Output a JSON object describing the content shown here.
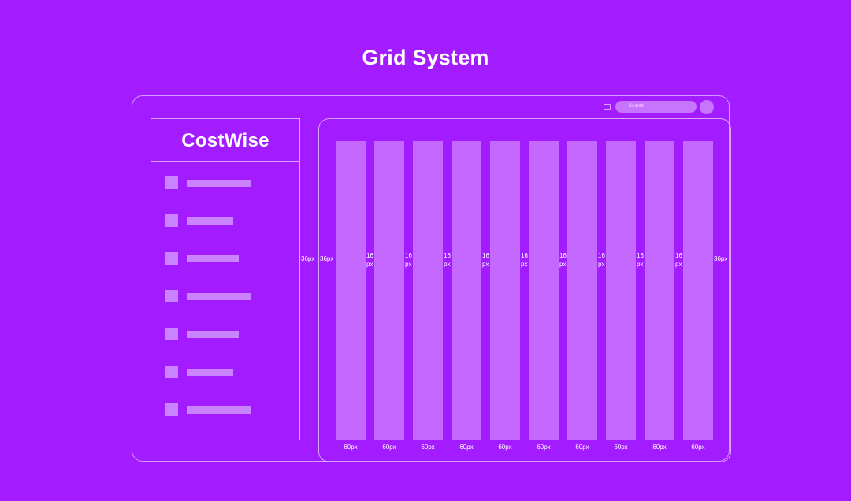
{
  "title": "Grid System",
  "topbar": {
    "search_placeholder": "Search"
  },
  "sidebar": {
    "logo": "CostWise",
    "items": [
      {
        "label_length": 0.75
      },
      {
        "label_length": 0.55
      },
      {
        "label_length": 0.61
      },
      {
        "label_length": 0.75
      },
      {
        "label_length": 0.61
      },
      {
        "label_length": 0.55
      },
      {
        "label_length": 0.75
      }
    ]
  },
  "grid": {
    "column_width_label": "60px",
    "gutter_label_top": "16",
    "gutter_label_bottom": "px",
    "margin_label": "36px",
    "columns": 10
  },
  "colors": {
    "background": "#a31cff",
    "column": "#c568ff",
    "sidebar_item": "#cb82ff",
    "text": "#ffffff"
  }
}
